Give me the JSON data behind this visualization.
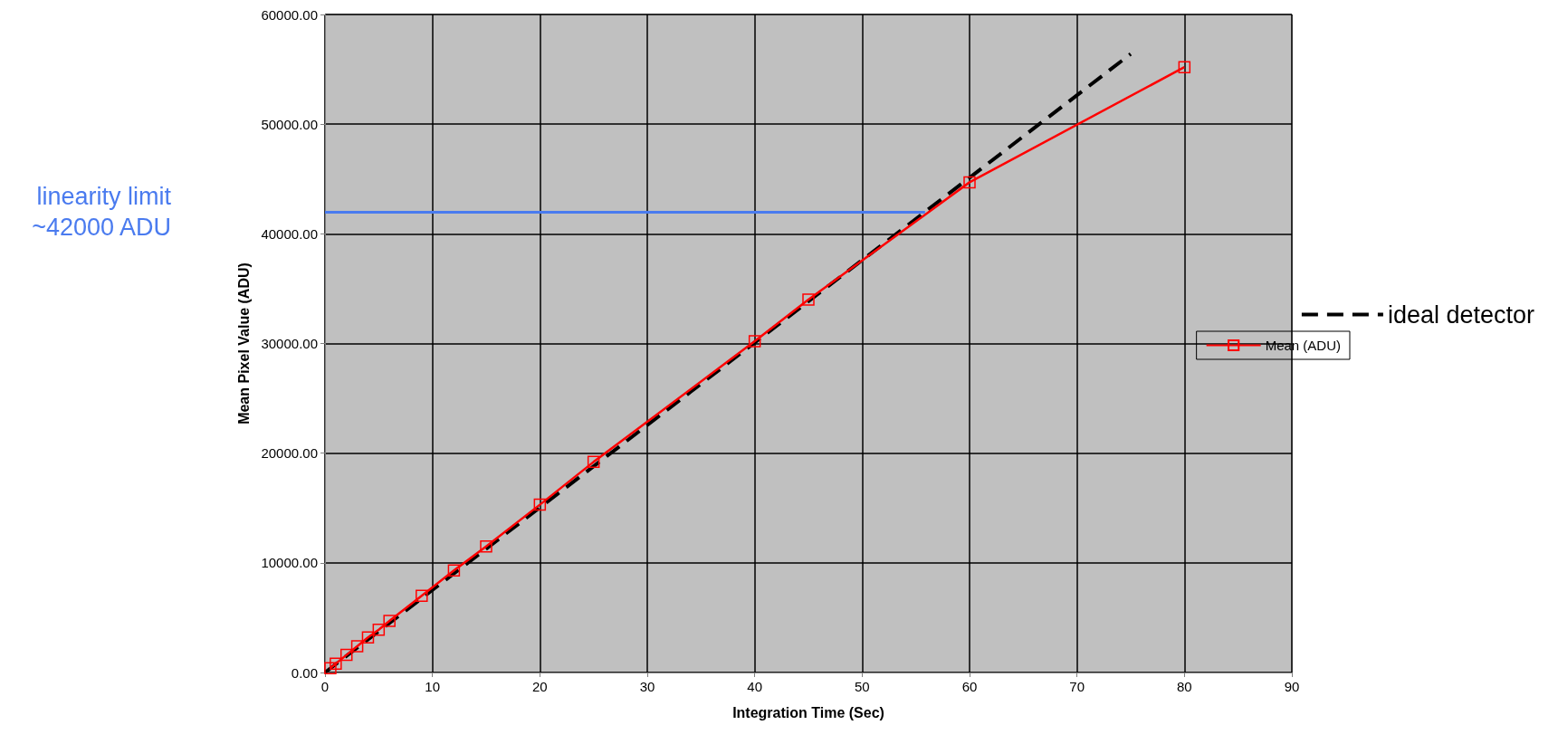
{
  "chart_data": {
    "type": "line",
    "xlabel": "Integration Time (Sec)",
    "ylabel": "Mean Pixel Value (ADU)",
    "xlim": [
      0,
      90
    ],
    "xticks": [
      0,
      10,
      20,
      30,
      40,
      50,
      60,
      70,
      80,
      90
    ],
    "ylim": [
      0,
      60000
    ],
    "yticks": [
      {
        "value": 0,
        "label": "0.00"
      },
      {
        "value": 10000,
        "label": "10000.00"
      },
      {
        "value": 20000,
        "label": "20000.00"
      },
      {
        "value": 30000,
        "label": "30000.00"
      },
      {
        "value": 40000,
        "label": "40000.00"
      },
      {
        "value": 50000,
        "label": "50000.00"
      },
      {
        "value": 60000,
        "label": "60000.00"
      }
    ],
    "grid": true,
    "legend": "right",
    "marker": "square",
    "series": [
      {
        "name": "ideal detector",
        "color": "#000000",
        "line_style": "dashed",
        "marker": "none",
        "x": [
          0,
          75
        ],
        "values": [
          0,
          56400
        ]
      },
      {
        "name": "Mean (ADU)",
        "color": "#ff0000",
        "x": [
          0.5,
          1,
          2,
          3,
          4,
          5,
          6,
          9,
          12,
          15,
          20,
          25,
          40,
          45,
          60,
          80
        ],
        "values": [
          400,
          800,
          1600,
          2400,
          3200,
          3900,
          4700,
          7000,
          9300,
          11500,
          15300,
          19200,
          30200,
          34000,
          44700,
          55200
        ]
      }
    ],
    "ref_lines": [
      {
        "axis": "y",
        "value": 42000,
        "label": "linearity limit\n~42000 ADU",
        "color": "#4a7bef"
      }
    ]
  }
}
